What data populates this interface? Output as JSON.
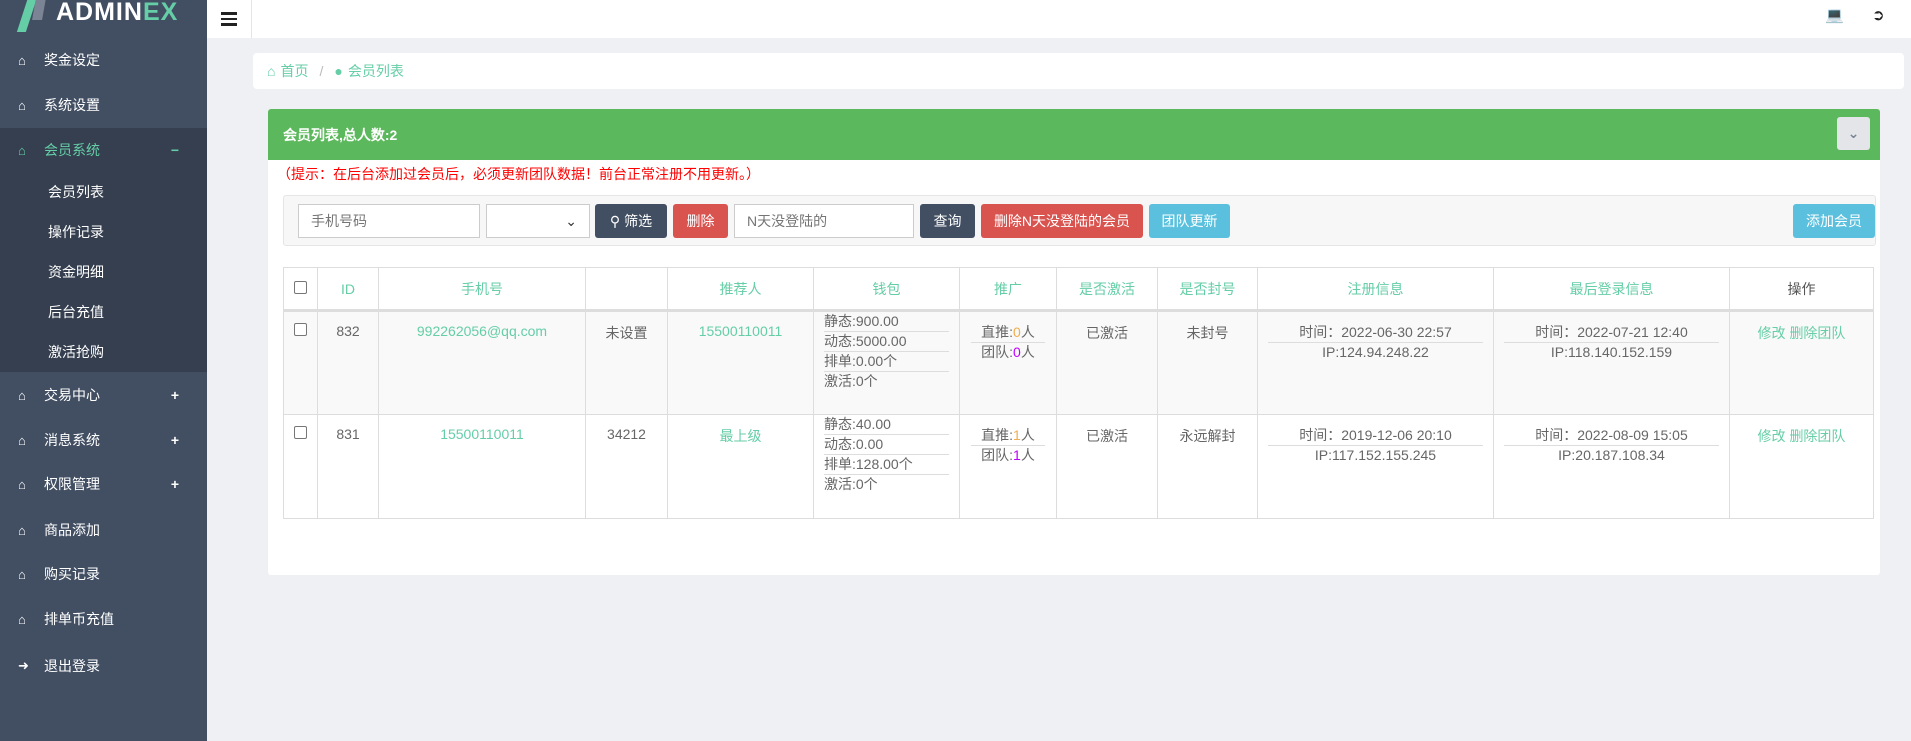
{
  "brand": {
    "name_a": "ADMIN",
    "name_b": "EX"
  },
  "sidebar": {
    "items": [
      {
        "label": "奖金设定",
        "icon": "home-icon"
      },
      {
        "label": "系统设置",
        "icon": "home-icon"
      },
      {
        "label": "会员系统",
        "icon": "home-icon",
        "toggle": "−",
        "active": true,
        "children": [
          "会员列表",
          "操作记录",
          "资金明细",
          "后台充值",
          "激活抢购"
        ]
      },
      {
        "label": "交易中心",
        "icon": "home-icon",
        "toggle": "+"
      },
      {
        "label": "消息系统",
        "icon": "home-icon",
        "toggle": "+"
      },
      {
        "label": "权限管理",
        "icon": "home-icon",
        "toggle": "+"
      },
      {
        "label": "商品添加",
        "icon": "home-icon"
      },
      {
        "label": "购买记录",
        "icon": "home-icon"
      },
      {
        "label": "排单币充值",
        "icon": "home-icon"
      },
      {
        "label": "退出登录",
        "icon": "sign-in-icon"
      }
    ]
  },
  "breadcrumb": {
    "home": "首页",
    "current": "会员列表"
  },
  "panel": {
    "title": "会员列表,总人数:2",
    "hint": "（提示：在后台添加过会员后，必须更新团队数据！前台正常注册不用更新。）"
  },
  "filter": {
    "phone_placeholder": "手机号码",
    "select_value": "",
    "filter_btn": "筛选",
    "delete_btn": "删除",
    "days_placeholder": "N天没登陆的",
    "query_btn": "查询",
    "delete_inactive_btn": "删除N天没登陆的会员",
    "team_update_btn": "团队更新",
    "add_btn": "添加会员"
  },
  "colors": {
    "accent": "#65cea7",
    "sidebar": "#424f63",
    "header": "#5cb85c",
    "danger": "#d9534f",
    "info": "#5bc0de"
  },
  "table": {
    "headers": [
      "ID",
      "手机号",
      "",
      "推荐人",
      "钱包",
      "推广",
      "是否激活",
      "是否封号",
      "注册信息",
      "最后登录信息",
      "操作"
    ],
    "rows": [
      {
        "id": "832",
        "phone": "992262056@qq.com",
        "name": "未设置",
        "referrer": "15500110011",
        "wallet": [
          "静态:900.00",
          "动态:5000.00",
          "排单:0.00个",
          "激活:0个"
        ],
        "direct_label": "直推:",
        "direct": "0",
        "team_label": "团队:",
        "team": "0",
        "unit": "人",
        "activated": "已激活",
        "banned": "未封号",
        "reg_time": "时间：2022-06-30 22:57",
        "reg_ip": "IP:124.94.248.22",
        "login_time": "时间：2022-07-21 12:40",
        "login_ip": "IP:118.140.152.159",
        "edit": "修改",
        "delete_team": "删除团队"
      },
      {
        "id": "831",
        "phone": "15500110011",
        "name": "34212",
        "referrer": "最上级",
        "wallet": [
          "静态:40.00",
          "动态:0.00",
          "排单:128.00个",
          "激活:0个"
        ],
        "direct_label": "直推:",
        "direct": "1",
        "team_label": "团队:",
        "team": "1",
        "unit": "人",
        "activated": "已激活",
        "banned": "永远解封",
        "reg_time": "时间：2019-12-06 20:10",
        "reg_ip": "IP:117.152.155.245",
        "login_time": "时间：2022-08-09 15:05",
        "login_ip": "IP:20.187.108.34",
        "edit": "修改",
        "delete_team": "删除团队"
      }
    ]
  }
}
